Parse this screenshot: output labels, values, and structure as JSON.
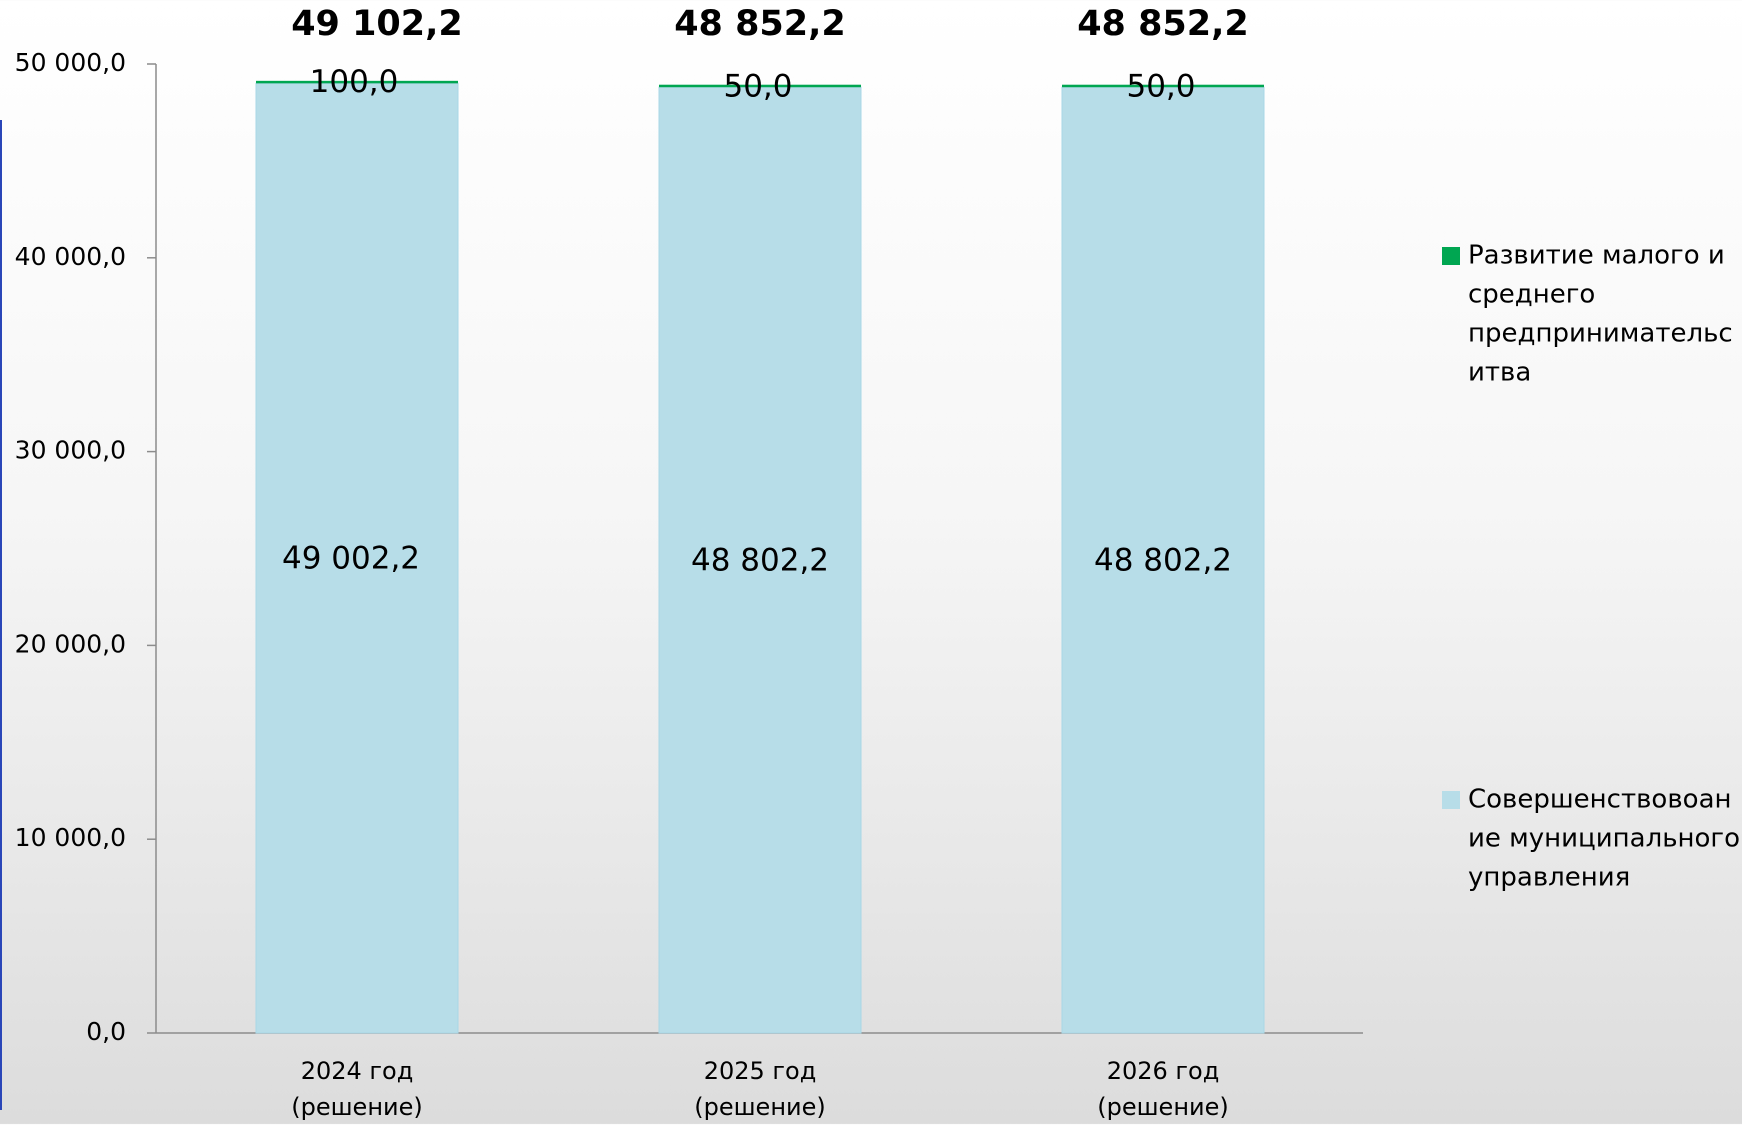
{
  "chart_data": {
    "type": "bar",
    "stacked": true,
    "categories": [
      [
        "2024 год",
        "(решение)"
      ],
      [
        "2025 год",
        "(решение)"
      ],
      [
        "2026 год",
        "(решение)"
      ]
    ],
    "series": [
      {
        "name": "Совершенствовоание муниципального управления",
        "legend_lines": [
          "Совершенствовоан",
          "ие муниципального",
          "управления"
        ],
        "color": "#b7dde8",
        "values": [
          49002.2,
          48802.2,
          48802.2
        ],
        "labels": [
          "49 002,2",
          "48 802,2",
          "48 802,2"
        ]
      },
      {
        "name": "Развитие малого и среднего предпринимательситва",
        "legend_lines": [
          "Развитие малого и",
          "среднего",
          "предпринимательс",
          "итва"
        ],
        "color": "#00a651",
        "values": [
          100.0,
          50.0,
          50.0
        ],
        "labels": [
          "100,0",
          "50,0",
          "50,0"
        ]
      }
    ],
    "totals": [
      49102.2,
      48852.2,
      48852.2
    ],
    "total_labels": [
      "49 102,2",
      "48 852,2",
      "48 852,2"
    ],
    "y_ticks": [
      0,
      10000,
      20000,
      30000,
      40000,
      50000
    ],
    "y_tick_labels": [
      "0,0",
      "10 000,0",
      "20 000,0",
      "30 000,0",
      "40 000,0",
      "50 000,0"
    ],
    "ylim": [
      0,
      50000
    ],
    "title": "",
    "xlabel": "",
    "ylabel": "",
    "grid": false,
    "legend_position": "right"
  }
}
